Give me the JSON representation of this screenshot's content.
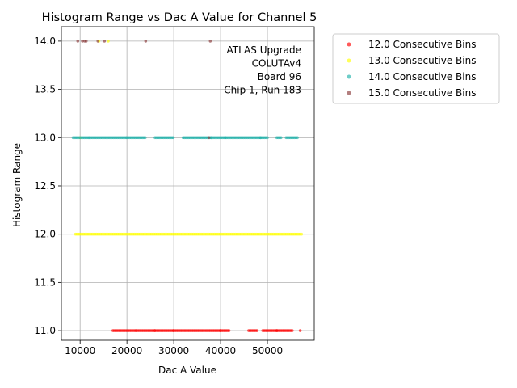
{
  "chart_data": {
    "type": "scatter",
    "title": "Histogram Range vs Dac A Value for Channel 5",
    "xlabel": "Dac A Value",
    "ylabel": "Histogram Range",
    "xlim": [
      6000,
      60000
    ],
    "ylim": [
      10.9,
      14.15
    ],
    "xticks": [
      10000,
      20000,
      30000,
      40000,
      50000
    ],
    "xtick_labels": [
      "10000",
      "20000",
      "30000",
      "40000",
      "50000"
    ],
    "yticks": [
      11.0,
      11.5,
      12.0,
      12.5,
      13.0,
      13.5,
      14.0
    ],
    "ytick_labels": [
      "11.0",
      "11.5",
      "12.0",
      "12.5",
      "13.0",
      "13.5",
      "14.0"
    ],
    "grid": true,
    "legend_placement": "outside-upper-right",
    "annotation": [
      "ATLAS Upgrade",
      "COLUTAv4",
      "Board 96",
      "Chip 1, Run 183"
    ],
    "series": [
      {
        "name": "12.0 Consecutive Bins",
        "color": "#ff0000",
        "y": 11.0,
        "x_ranges": [
          [
            17000,
            22000
          ],
          [
            22000,
            26000
          ],
          [
            26000,
            30000
          ],
          [
            30000,
            40000
          ],
          [
            40000,
            42000
          ],
          [
            46000,
            48000
          ],
          [
            49000,
            52000
          ],
          [
            52000,
            55500
          ],
          [
            57000,
            57200
          ]
        ]
      },
      {
        "name": "13.0 Consecutive Bins",
        "color": "#ffff00",
        "y": 12.0,
        "x_ranges": [
          [
            9000,
            57500
          ]
        ],
        "extra_points": [
          [
            10000,
            13.0
          ],
          [
            14000,
            14.0
          ],
          [
            16000,
            14.0
          ]
        ]
      },
      {
        "name": "14.0 Consecutive Bins",
        "color": "#20b2aa",
        "y": 13.0,
        "x_ranges": [
          [
            8500,
            12000
          ],
          [
            12000,
            20000
          ],
          [
            20000,
            24000
          ],
          [
            26000,
            30000
          ],
          [
            32000,
            38000
          ],
          [
            38000,
            41000
          ],
          [
            41000,
            48500
          ],
          [
            48500,
            50000
          ],
          [
            52000,
            53000
          ],
          [
            54000,
            56500
          ]
        ]
      },
      {
        "name": "15.0 Consecutive Bins",
        "color": "#8b3a3a",
        "y": 14.0,
        "points": [
          [
            9500,
            14.0
          ],
          [
            10500,
            14.0
          ],
          [
            11000,
            14.0
          ],
          [
            11300,
            14.0
          ],
          [
            13800,
            14.0
          ],
          [
            15200,
            14.0
          ],
          [
            24000,
            14.0
          ],
          [
            37800,
            14.0
          ],
          [
            37500,
            13.0
          ]
        ]
      }
    ]
  }
}
